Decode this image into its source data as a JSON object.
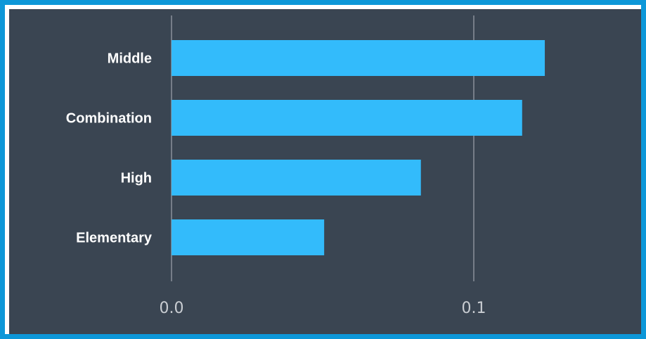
{
  "chart_data": {
    "type": "bar",
    "orientation": "horizontal",
    "categories": [
      "Middle",
      "Combination",
      "High",
      "Elementary"
    ],
    "values": [
      0.1235,
      0.116,
      0.0825,
      0.0505
    ],
    "xticks": [
      "0.0",
      "0.1"
    ],
    "xlim": [
      0,
      0.1505
    ],
    "title": "",
    "xlabel": "",
    "ylabel": "",
    "grid": "vertical",
    "legend": "none"
  },
  "colors": {
    "bar": "#33bbfb",
    "background": "#3a4552",
    "gridline": "#8a9099",
    "frame": "#0d97d8"
  }
}
